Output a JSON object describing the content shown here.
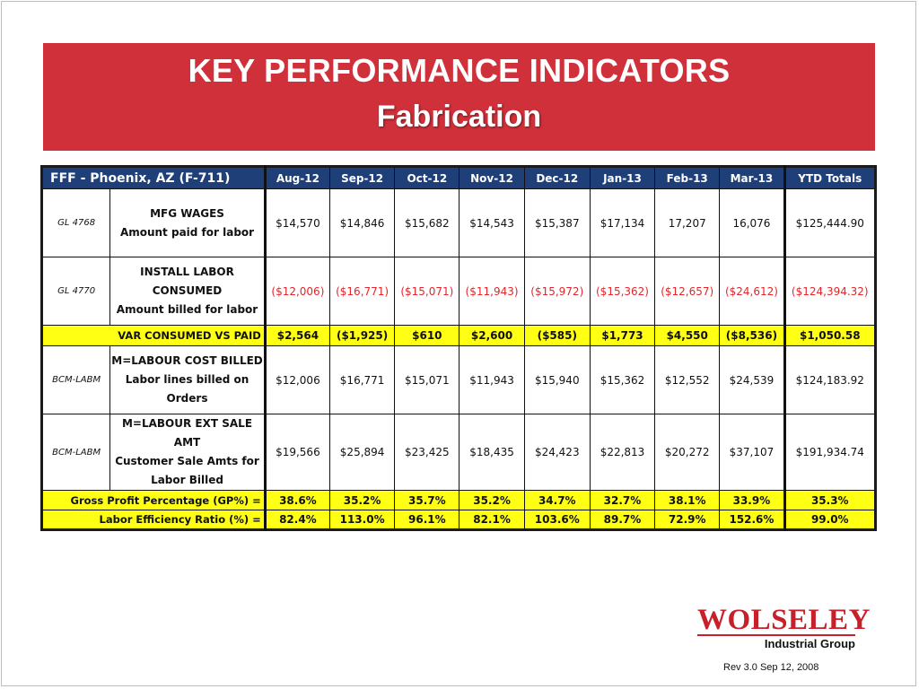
{
  "slide": {
    "title": "KEY PERFORMANCE INDICATORS",
    "subtitle": "Fabrication",
    "banner_color": "#d0303a"
  },
  "table": {
    "entity": "FFF - Phoenix, AZ (F-711)",
    "months": [
      "Aug-12",
      "Sep-12",
      "Oct-12",
      "Nov-12",
      "Dec-12",
      "Jan-13",
      "Feb-13",
      "Mar-13"
    ],
    "ytd_header": "YTD Totals",
    "header_color": "#1f3f78",
    "highlight_color": "#ffff14",
    "negative_color": "#e2262b",
    "rows": [
      {
        "account": "GL 4768",
        "desc": [
          "MFG WAGES",
          "Amount paid for labor"
        ],
        "values": [
          "$14,570",
          "$14,846",
          "$15,682",
          "$14,543",
          "$15,387",
          "$17,134",
          "17,207",
          "16,076"
        ],
        "ytd": "$125,444.90"
      },
      {
        "account": "GL 4770",
        "desc": [
          "INSTALL LABOR",
          "CONSUMED",
          "Amount billed for labor"
        ],
        "values": [
          "($12,006)",
          "($16,771)",
          "($15,071)",
          "($11,943)",
          "($15,972)",
          "($15,362)",
          "($12,657)",
          "($24,612)"
        ],
        "ytd": "($124,394.32)"
      },
      {
        "label": "VAR CONSUMED VS PAID",
        "values": [
          "$2,564",
          "($1,925)",
          "$610",
          "$2,600",
          "($585)",
          "$1,773",
          "$4,550",
          "($8,536)"
        ],
        "ytd": "$1,050.58"
      },
      {
        "account": "BCM-LABM",
        "desc": [
          "M=LABOUR COST BILLED",
          "Labor lines billed on",
          "Orders"
        ],
        "values": [
          "$12,006",
          "$16,771",
          "$15,071",
          "$11,943",
          "$15,940",
          "$15,362",
          "$12,552",
          "$24,539"
        ],
        "ytd": "$124,183.92"
      },
      {
        "account": "BCM-LABM",
        "desc": [
          "M=LABOUR EXT SALE AMT",
          "Customer Sale Amts for",
          "Labor Billed"
        ],
        "values": [
          "$19,566",
          "$25,894",
          "$23,425",
          "$18,435",
          "$24,423",
          "$22,813",
          "$20,272",
          "$37,107"
        ],
        "ytd": "$191,934.74"
      },
      {
        "label": "Gross Profit Percentage (GP%) =",
        "values": [
          "38.6%",
          "35.2%",
          "35.7%",
          "35.2%",
          "34.7%",
          "32.7%",
          "38.1%",
          "33.9%"
        ],
        "ytd": "35.3%"
      },
      {
        "label": "Labor Efficiency Ratio (%)  =",
        "values": [
          "82.4%",
          "113.0%",
          "96.1%",
          "82.1%",
          "103.6%",
          "89.7%",
          "72.9%",
          "152.6%"
        ],
        "ytd": "99.0%"
      }
    ]
  },
  "footer": {
    "logo_word": "WOLSELEY",
    "logo_sub": "Industrial Group",
    "logo_color": "#c8202a",
    "revision": "Rev 3.0 Sep 12, 2008"
  }
}
